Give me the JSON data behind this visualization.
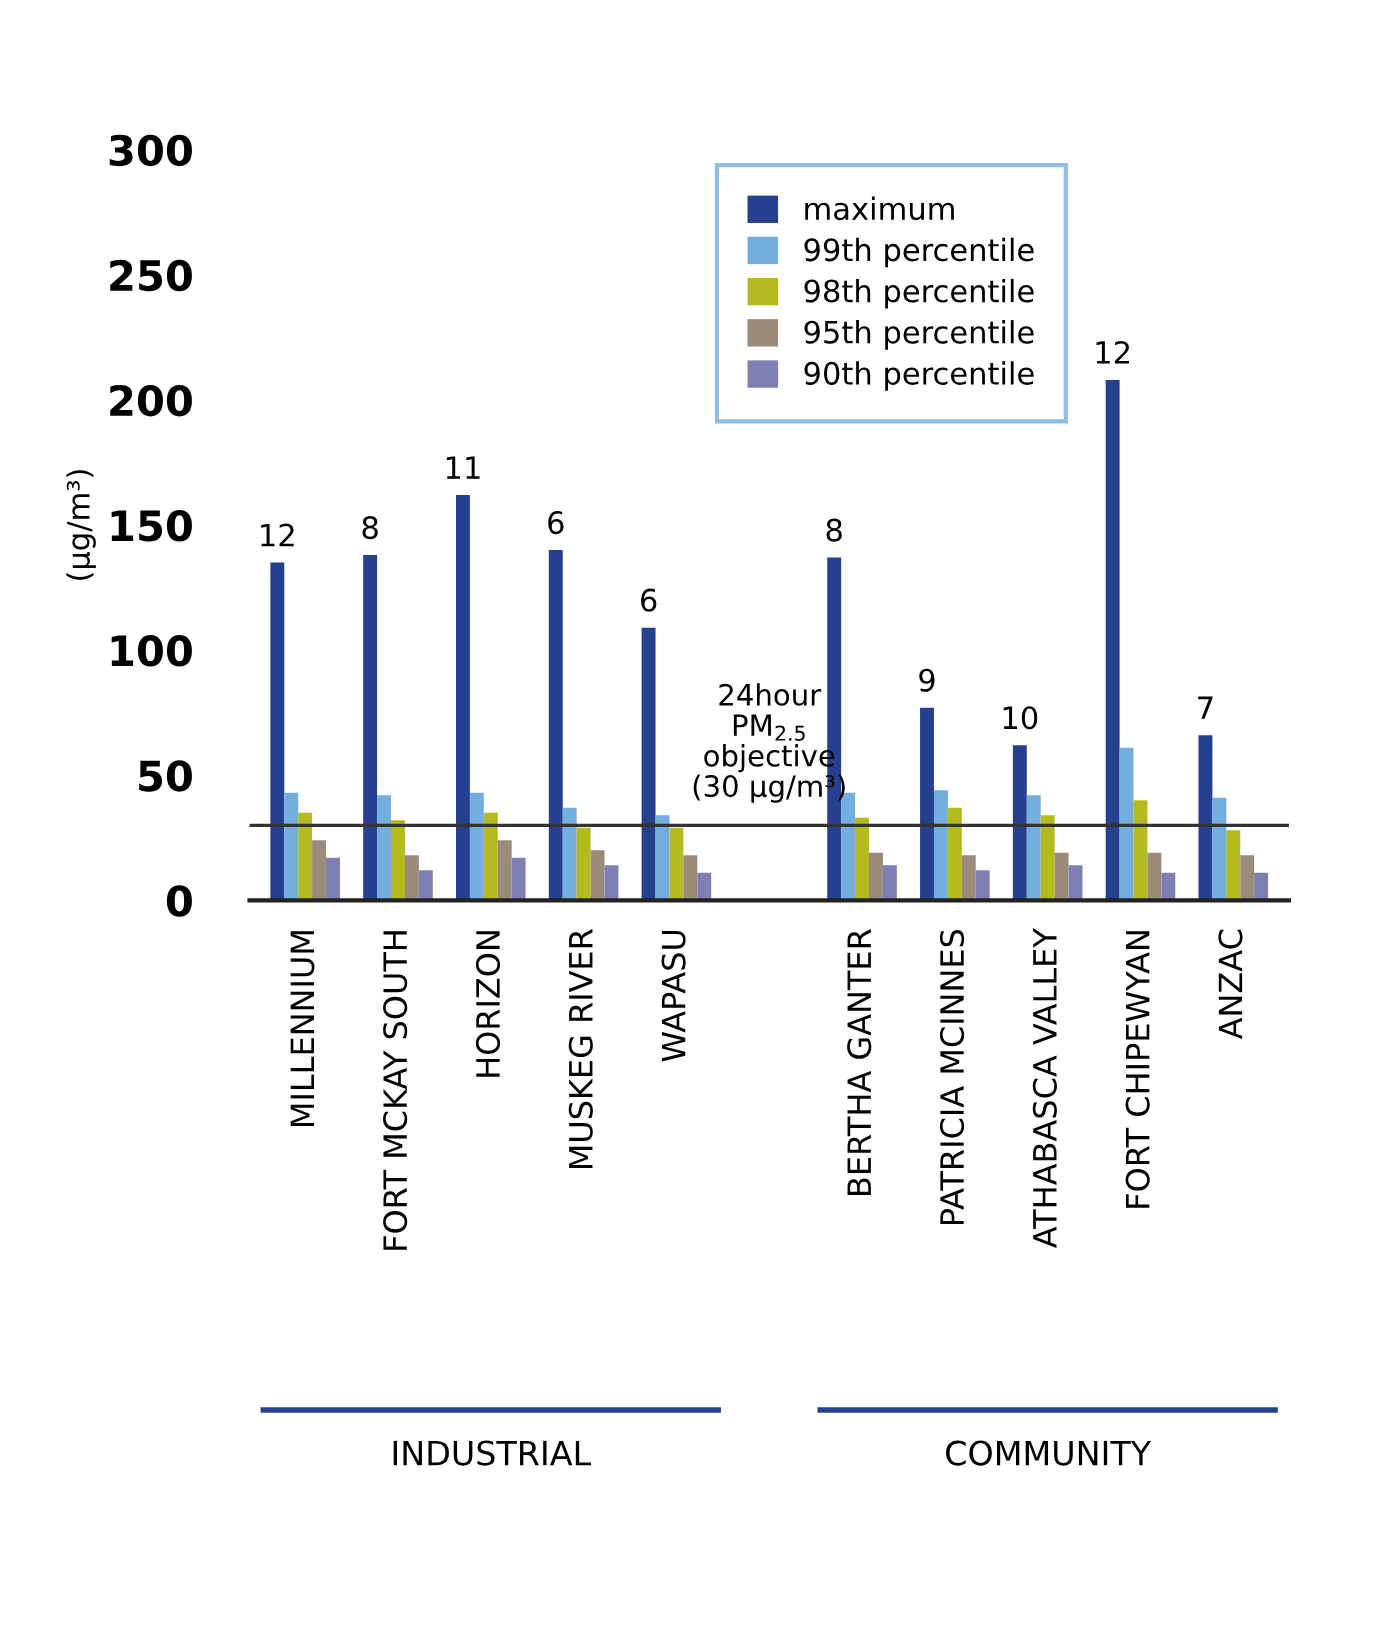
{
  "chart_data": {
    "type": "bar",
    "ylabel": "(µg/m³)",
    "categories": [
      "MILLENNIUM",
      "FORT MCKAY SOUTH",
      "HORIZON",
      "MUSKEG RIVER",
      "WAPASU",
      null,
      "BERTHA GANTER",
      "PATRICIA MCINNES",
      "ATHABASCA VALLEY",
      "FORT CHIPEWYAN",
      "ANZAC"
    ],
    "series": [
      {
        "name": "maximum",
        "color": "#25408f",
        "values": [
          135,
          138,
          162,
          140,
          109,
          null,
          137,
          77,
          62,
          208,
          66
        ]
      },
      {
        "name": "99th percentile",
        "color": "#74aedf",
        "values": [
          43,
          42,
          43,
          37,
          34,
          null,
          43,
          44,
          42,
          61,
          41
        ]
      },
      {
        "name": "98th percentile",
        "color": "#b3bb1f",
        "values": [
          35,
          32,
          35,
          29,
          29,
          null,
          33,
          37,
          34,
          40,
          28
        ]
      },
      {
        "name": "95th percentile",
        "color": "#9b8b7b",
        "values": [
          24,
          18,
          24,
          20,
          18,
          null,
          19,
          18,
          19,
          19,
          18
        ]
      },
      {
        "name": "90th percentile",
        "color": "#7f7fb5",
        "values": [
          17,
          12,
          17,
          14,
          11,
          null,
          14,
          12,
          14,
          11,
          11
        ]
      }
    ],
    "ylim": [
      0,
      300
    ],
    "yticks": [
      0,
      50,
      100,
      150,
      200,
      250,
      300
    ],
    "grid": false,
    "legend": "top right",
    "ref_lines": [
      {
        "axis": "y",
        "value": 30,
        "label": "24hour\nPM$_{2.5}$\nobjective\n(30 µg/m³)",
        "color": "#333333"
      }
    ],
    "annotations": [
      "12",
      "8",
      "11",
      "6",
      "6",
      "8",
      "9",
      "10",
      "12",
      "7",
      "INDUSTRIAL",
      "COMMUNITY"
    ]
  }
}
